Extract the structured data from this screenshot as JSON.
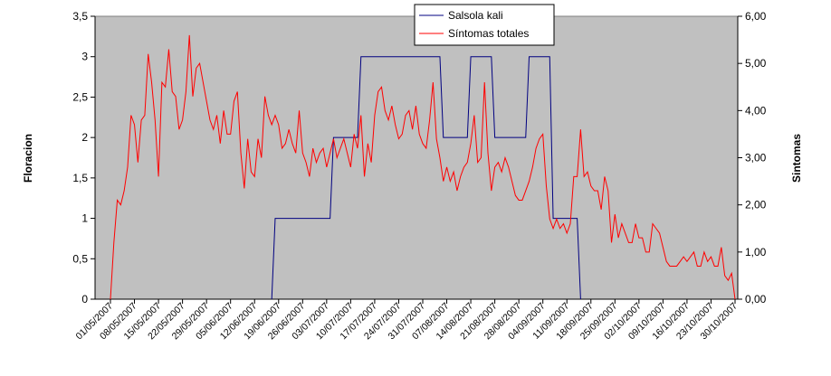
{
  "chart_data": {
    "type": "line",
    "legend": "top-center",
    "ylabel": "Floracion",
    "y2label": "Sintomas",
    "ylim": [
      0,
      3.5
    ],
    "yticks": [
      0,
      {
        "value": 0.5,
        "label": "0,5"
      },
      1,
      {
        "value": 1.5,
        "label": "1,5"
      },
      2,
      {
        "value": 2.5,
        "label": "2,5"
      },
      3,
      {
        "value": 3.5,
        "label": "3,5"
      }
    ],
    "y2lim": [
      0,
      6
    ],
    "y2ticks": [
      {
        "value": 0,
        "label": "0,00"
      },
      {
        "value": 1,
        "label": "1,00"
      },
      {
        "value": 2,
        "label": "2,00"
      },
      {
        "value": 3,
        "label": "3,00"
      },
      {
        "value": 4,
        "label": "4,00"
      },
      {
        "value": 5,
        "label": "5,00"
      },
      {
        "value": 6,
        "label": "6,00"
      }
    ],
    "categories": [
      "01/05/2007",
      null,
      null,
      null,
      null,
      null,
      null,
      "08/05/2007",
      null,
      null,
      null,
      null,
      null,
      null,
      "15/05/2007",
      null,
      null,
      null,
      null,
      null,
      null,
      "22/05/2007",
      null,
      null,
      null,
      null,
      null,
      null,
      "29/05/2007",
      null,
      null,
      null,
      null,
      null,
      null,
      "05/06/2007",
      null,
      null,
      null,
      null,
      null,
      null,
      "12/06/2007",
      null,
      null,
      null,
      null,
      null,
      null,
      "19/06/2007",
      null,
      null,
      null,
      null,
      null,
      null,
      "26/06/2007",
      null,
      null,
      null,
      null,
      null,
      null,
      "03/07/2007",
      null,
      null,
      null,
      null,
      null,
      null,
      "10/07/2007",
      null,
      null,
      null,
      null,
      null,
      null,
      "17/07/2007",
      null,
      null,
      null,
      null,
      null,
      null,
      "24/07/2007",
      null,
      null,
      null,
      null,
      null,
      null,
      "31/07/2007",
      null,
      null,
      null,
      null,
      null,
      null,
      "07/08/2007",
      null,
      null,
      null,
      null,
      null,
      null,
      "14/08/2007",
      null,
      null,
      null,
      null,
      null,
      null,
      "21/08/2007",
      null,
      null,
      null,
      null,
      null,
      null,
      "28/08/2007",
      null,
      null,
      null,
      null,
      null,
      null,
      "04/09/2007",
      null,
      null,
      null,
      null,
      null,
      null,
      "11/09/2007",
      null,
      null,
      null,
      null,
      null,
      null,
      "18/09/2007",
      null,
      null,
      null,
      null,
      null,
      null,
      "25/09/2007",
      null,
      null,
      null,
      null,
      null,
      null,
      "02/10/2007",
      null,
      null,
      null,
      null,
      null,
      null,
      "09/10/2007",
      null,
      null,
      null,
      null,
      null,
      null,
      "16/10/2007",
      null,
      null,
      null,
      null,
      null,
      null,
      "23/10/2007",
      null,
      null,
      null,
      null,
      null,
      null,
      "30/10/2007"
    ],
    "series": [
      {
        "name": "Salsola kali",
        "color": "#000080",
        "values": [
          null,
          null,
          null,
          null,
          null,
          null,
          null,
          null,
          null,
          null,
          null,
          null,
          null,
          null,
          null,
          null,
          null,
          null,
          null,
          null,
          null,
          null,
          null,
          null,
          null,
          null,
          null,
          null,
          null,
          null,
          null,
          null,
          null,
          null,
          null,
          null,
          null,
          null,
          null,
          null,
          null,
          null,
          null,
          null,
          null,
          null,
          null,
          0,
          1,
          1,
          1,
          1,
          1,
          1,
          1,
          1,
          1,
          1,
          1,
          1,
          1,
          1,
          1,
          1,
          1,
          2,
          2,
          2,
          2,
          2,
          2,
          2,
          2,
          3,
          3,
          3,
          3,
          3,
          3,
          3,
          3,
          3,
          3,
          3,
          3,
          3,
          3,
          3,
          3,
          3,
          3,
          3,
          3,
          3,
          3,
          3,
          3,
          2,
          2,
          2,
          2,
          2,
          2,
          2,
          2,
          3,
          3,
          3,
          3,
          3,
          3,
          3,
          2,
          2,
          2,
          2,
          2,
          2,
          2,
          2,
          2,
          2,
          3,
          3,
          3,
          3,
          3,
          3,
          3,
          1,
          1,
          1,
          1,
          1,
          1,
          1,
          1,
          0,
          null,
          null,
          null,
          null,
          null,
          null,
          null,
          null,
          null,
          null,
          null,
          null,
          null,
          null,
          null,
          null,
          null,
          null,
          null,
          null,
          null,
          null,
          null,
          null,
          null,
          null,
          null,
          null,
          null,
          null,
          null,
          null,
          null,
          null,
          null,
          null,
          null,
          null,
          null,
          null,
          null,
          null,
          null,
          null,
          null
        ]
      },
      {
        "name": "Síntomas totales",
        "color": "#ff0000",
        "axis": "y2",
        "values": [
          0,
          1.2,
          2.1,
          2.0,
          2.3,
          2.8,
          3.9,
          3.7,
          2.9,
          3.8,
          3.9,
          5.2,
          4.6,
          3.8,
          2.6,
          4.6,
          4.5,
          5.3,
          4.4,
          4.3,
          3.6,
          3.8,
          4.4,
          5.6,
          4.3,
          4.9,
          5.0,
          4.6,
          4.2,
          3.8,
          3.6,
          3.9,
          3.3,
          4.0,
          3.5,
          3.5,
          4.2,
          4.4,
          3.1,
          2.35,
          3.4,
          2.7,
          2.6,
          3.4,
          3.0,
          4.3,
          3.9,
          3.7,
          3.9,
          3.7,
          3.2,
          3.3,
          3.6,
          3.3,
          3.1,
          4.0,
          3.1,
          2.9,
          2.6,
          3.2,
          2.9,
          3.1,
          3.2,
          2.8,
          3.1,
          3.4,
          3.0,
          3.2,
          3.4,
          3.1,
          2.8,
          3.5,
          3.2,
          3.9,
          2.6,
          3.3,
          2.9,
          3.9,
          4.4,
          4.5,
          4.0,
          3.8,
          4.1,
          3.7,
          3.4,
          3.5,
          3.9,
          4.0,
          3.6,
          4.1,
          3.5,
          3.3,
          3.2,
          3.8,
          4.6,
          3.4,
          3.0,
          2.5,
          2.8,
          2.5,
          2.7,
          2.3,
          2.6,
          2.8,
          2.9,
          3.3,
          3.9,
          2.9,
          3.0,
          4.6,
          3.1,
          2.3,
          2.8,
          2.9,
          2.7,
          3.0,
          2.8,
          2.5,
          2.2,
          2.1,
          2.1,
          2.3,
          2.5,
          2.8,
          3.2,
          3.4,
          3.5,
          2.4,
          1.7,
          1.5,
          1.7,
          1.5,
          1.6,
          1.4,
          1.6,
          2.6,
          2.6,
          3.6,
          2.6,
          2.7,
          2.4,
          2.3,
          2.3,
          1.9,
          2.6,
          2.3,
          1.2,
          1.8,
          1.3,
          1.6,
          1.4,
          1.2,
          1.2,
          1.6,
          1.3,
          1.3,
          1.0,
          1.0,
          1.6,
          1.5,
          1.4,
          1.1,
          0.8,
          0.7,
          0.7,
          0.7,
          0.8,
          0.9,
          0.8,
          0.9,
          1.0,
          0.7,
          0.7,
          1.0,
          0.8,
          0.9,
          0.7,
          0.7,
          1.1,
          0.5,
          0.4,
          0.55,
          0
        ]
      }
    ]
  }
}
